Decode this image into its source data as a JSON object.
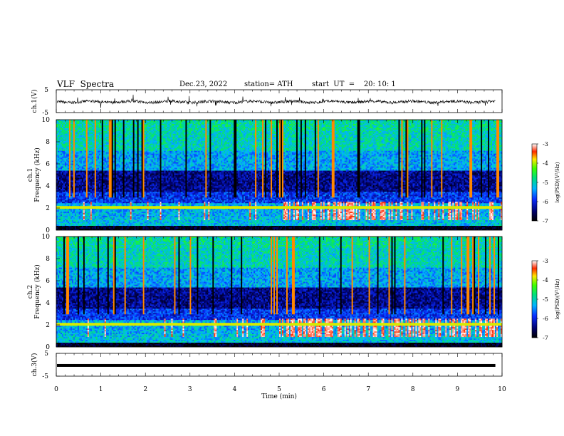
{
  "header": {
    "title": "VLF  Spectra",
    "date": "Dec.23, 2022",
    "station": "station= ATH",
    "start": "start  UT  =    20: 10: 1"
  },
  "chart_data": [
    {
      "type": "line",
      "panel": "ch1-waveform",
      "ylabel": "ch.1(V)",
      "ylim": [
        -5,
        5
      ],
      "yticks": [
        "5",
        "-5"
      ],
      "xlim": [
        0,
        10
      ],
      "trace_color": "#000000",
      "note_value": 0
    },
    {
      "type": "heatmap",
      "panel": "ch1-spectrogram",
      "ylabel": "ch.1\nFrequency (kHz)",
      "ylim": [
        0,
        10
      ],
      "yticks": [
        "0",
        "2",
        "4",
        "6",
        "8",
        "10"
      ],
      "xlim": [
        0,
        10
      ],
      "colorbar": {
        "label": "log(PSD)(V²/Hz)",
        "range": [
          -7,
          -3
        ],
        "ticks": [
          "-3",
          "-4",
          "-5",
          "-6",
          "-7"
        ]
      }
    },
    {
      "type": "heatmap",
      "panel": "ch2-spectrogram",
      "ylabel": "ch.2\nFrequency (kHz)",
      "ylim": [
        0,
        10
      ],
      "yticks": [
        "0",
        "2",
        "4",
        "6",
        "8",
        "10"
      ],
      "xlim": [
        0,
        10
      ],
      "colorbar": {
        "label": "log(PSD)(V²/Hz)",
        "range": [
          -7,
          -3
        ],
        "ticks": [
          "-3",
          "-4",
          "-5",
          "-6",
          "-7"
        ]
      }
    },
    {
      "type": "line",
      "panel": "ch3-waveform",
      "ylabel": "ch.3(V)",
      "ylim": [
        -5,
        5
      ],
      "yticks": [
        "5",
        "-5"
      ],
      "xlim": [
        0,
        10
      ],
      "xlabel": "Time  (min)",
      "xticks": [
        "0",
        "1",
        "2",
        "3",
        "4",
        "5",
        "6",
        "7",
        "8",
        "9",
        "10"
      ]
    }
  ]
}
